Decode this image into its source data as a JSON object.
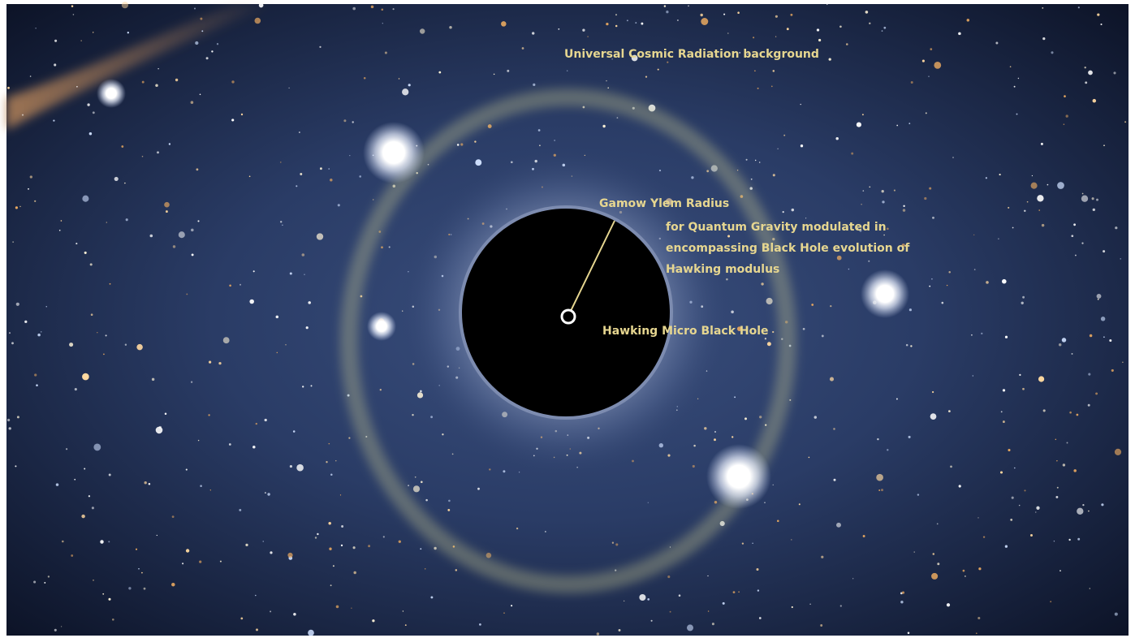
{
  "annotations": {
    "background": "Universal Cosmic Radiation background",
    "radius": "Gamow Ylem Radius",
    "description": [
      "for Quantum Gravity modulated in",
      "encompassing Black Hole evolution of",
      "Hawking modulus"
    ],
    "center": "Hawking Micro Black Hole"
  }
}
